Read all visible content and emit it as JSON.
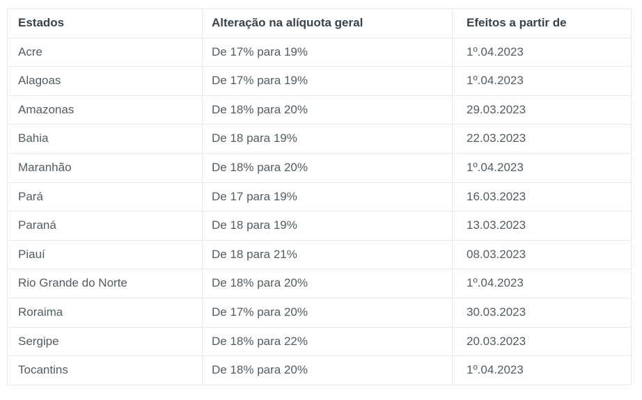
{
  "theme": {
    "bg": "#ffffff",
    "border_color": "#e8e9ea",
    "header_text": "#37424a",
    "body_text": "#515c62"
  },
  "chart_data": {
    "type": "table",
    "title": "",
    "columns": [
      "Estados",
      "Alteração na alíquota geral",
      "Efeitos a partir de"
    ],
    "rows": [
      [
        "Acre",
        "De 17% para 19%",
        "1º.04.2023"
      ],
      [
        "Alagoas",
        "De 17% para 19%",
        "1º.04.2023"
      ],
      [
        "Amazonas",
        "De 18% para 20%",
        "29.03.2023"
      ],
      [
        "Bahia",
        "De 18 para 19%",
        "22.03.2023"
      ],
      [
        "Maranhão",
        "De 18% para 20%",
        "1º.04.2023"
      ],
      [
        "Pará",
        "De 17 para 19%",
        "16.03.2023"
      ],
      [
        "Paraná",
        "De 18 para 19%",
        "13.03.2023"
      ],
      [
        "Piauí",
        "De 18 para 21%",
        "08.03.2023"
      ],
      [
        "Rio Grande do Norte",
        "De 18% para 20%",
        "1º.04.2023"
      ],
      [
        "Roraima",
        "De 17% para 20%",
        "30.03.2023"
      ],
      [
        "Sergipe",
        "De 18% para 22%",
        "20.03.2023"
      ],
      [
        "Tocantins",
        "De 18% para 20%",
        "1º.04.2023"
      ]
    ]
  }
}
